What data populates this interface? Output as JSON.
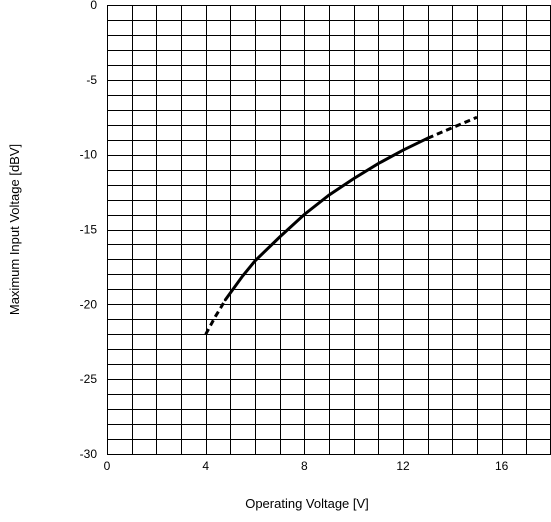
{
  "chart_data": {
    "type": "line",
    "title": "",
    "xlabel": "Operating Voltage [V]",
    "ylabel": "Maximum Input Voltage [dBV]",
    "xlim": [
      0,
      18
    ],
    "ylim": [
      -30,
      0
    ],
    "x_tick_labels": [
      "0",
      "4",
      "8",
      "12",
      "16"
    ],
    "x_ticks": [
      0,
      4,
      8,
      12,
      16
    ],
    "y_tick_labels": [
      "0",
      "-5",
      "-10",
      "-15",
      "-20",
      "-25",
      "-30"
    ],
    "y_ticks": [
      0,
      -5,
      -10,
      -15,
      -20,
      -25,
      -30
    ],
    "x_grid_step": 1,
    "y_grid_step": 1,
    "grid": true,
    "series": [
      {
        "style": "dashed",
        "x": [
          4.0,
          4.2,
          4.4,
          4.6,
          4.8
        ],
        "y": [
          -22.0,
          -21.4,
          -20.8,
          -20.25,
          -19.7
        ]
      },
      {
        "style": "solid",
        "x": [
          4.8,
          5.5,
          6,
          7,
          8,
          9,
          10,
          11,
          12,
          13
        ],
        "y": [
          -19.7,
          -18.1,
          -17.1,
          -15.5,
          -14.0,
          -12.7,
          -11.6,
          -10.6,
          -9.7,
          -8.9
        ]
      },
      {
        "style": "dashed",
        "x": [
          13,
          14,
          15
        ],
        "y": [
          -8.9,
          -8.2,
          -7.5
        ]
      }
    ]
  }
}
